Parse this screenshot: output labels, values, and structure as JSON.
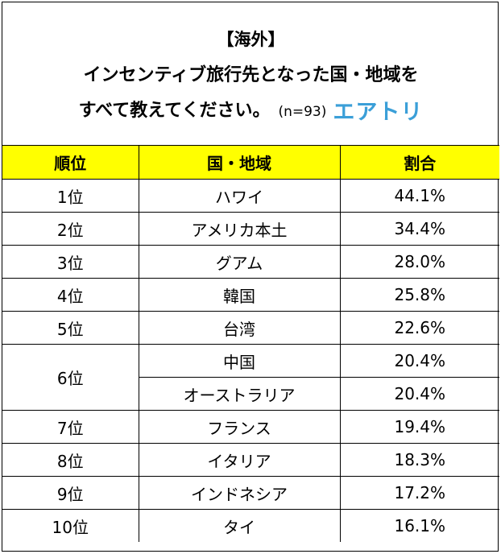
{
  "header": {
    "line1": "【海外】",
    "line2": "インセンティブ旅行先となった国・地域を",
    "line3": "すべて教えてください。",
    "sample": "(n=93)",
    "logo": "エアトリ"
  },
  "columns": [
    "順位",
    "国・地域",
    "割合"
  ],
  "chart_data": {
    "type": "table",
    "title": "【海外】インセンティブ旅行先となった国・地域をすべて教えてください。",
    "columns": [
      "順位",
      "国・地域",
      "割合"
    ],
    "rows": [
      {
        "rank": "1位",
        "region": "ハワイ",
        "value": "44.1%"
      },
      {
        "rank": "2位",
        "region": "アメリカ本土",
        "value": "34.4%"
      },
      {
        "rank": "3位",
        "region": "グアム",
        "value": "28.0%"
      },
      {
        "rank": "4位",
        "region": "韓国",
        "value": "25.8%"
      },
      {
        "rank": "5位",
        "region": "台湾",
        "value": "22.6%"
      },
      {
        "rank": "6位",
        "region": "中国",
        "value": "20.4%"
      },
      {
        "rank": "",
        "region": "オーストラリア",
        "value": "20.4%"
      },
      {
        "rank": "7位",
        "region": "フランス",
        "value": "19.4%"
      },
      {
        "rank": "8位",
        "region": "イタリア",
        "value": "18.3%"
      },
      {
        "rank": "9位",
        "region": "インドネシア",
        "value": "17.2%"
      },
      {
        "rank": "10位",
        "region": "タイ",
        "value": "16.1%"
      }
    ],
    "header_color": "#ffff00",
    "logo_color": "#3b9fd8"
  }
}
